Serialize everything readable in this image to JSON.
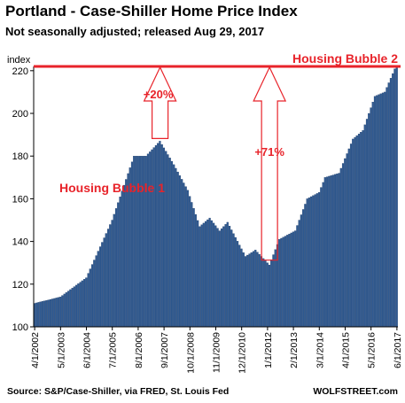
{
  "header": {
    "title": "Portland - Case-Shiller Home Price Index",
    "subtitle": "Not seasonally adjusted; released  Aug 29, 2017"
  },
  "footer": {
    "source": "Source: S&P/Case-Shiller, via FRED,  St. Louis Fed",
    "brand": "WOLFSTREET.com"
  },
  "colors": {
    "bar": "#2f5a92",
    "bar_edge": "#1b3a66",
    "annotation": "#e8232a"
  },
  "chart_data": {
    "type": "bar",
    "title": "Portland - Case-Shiller Home Price Index",
    "ylabel": "index",
    "xlabel": "",
    "ylim": [
      100,
      222
    ],
    "yticks": [
      100,
      120,
      140,
      160,
      180,
      200,
      220
    ],
    "grid": false,
    "legend": "none",
    "x_tick_labels": [
      "4/1/2002",
      "5/1/2003",
      "6/1/2004",
      "7/1/2005",
      "8/1/2006",
      "9/1/2007",
      "10/1/2008",
      "11/1/2009",
      "12/1/2010",
      "1/1/2012",
      "2/1/2013",
      "3/1/2014",
      "4/1/2015",
      "5/1/2016",
      "6/1/2017"
    ],
    "period": {
      "start": "2002-04",
      "end": "2017-06",
      "frequency": "monthly"
    },
    "keypoints": [
      {
        "date": "2002-04",
        "value": 111
      },
      {
        "date": "2003-05",
        "value": 114
      },
      {
        "date": "2004-06",
        "value": 123
      },
      {
        "date": "2005-07",
        "value": 150
      },
      {
        "date": "2006-06",
        "value": 180
      },
      {
        "date": "2006-12",
        "value": 180
      },
      {
        "date": "2007-07",
        "value": 187
      },
      {
        "date": "2008-02",
        "value": 176
      },
      {
        "date": "2008-09",
        "value": 164
      },
      {
        "date": "2009-03",
        "value": 147
      },
      {
        "date": "2009-08",
        "value": 151
      },
      {
        "date": "2010-01",
        "value": 145
      },
      {
        "date": "2010-05",
        "value": 149
      },
      {
        "date": "2011-02",
        "value": 133
      },
      {
        "date": "2011-07",
        "value": 136
      },
      {
        "date": "2012-02",
        "value": 129
      },
      {
        "date": "2012-07",
        "value": 141
      },
      {
        "date": "2013-03",
        "value": 145
      },
      {
        "date": "2013-09",
        "value": 160
      },
      {
        "date": "2014-03",
        "value": 163
      },
      {
        "date": "2014-06",
        "value": 170
      },
      {
        "date": "2015-01",
        "value": 172
      },
      {
        "date": "2015-08",
        "value": 188
      },
      {
        "date": "2016-01",
        "value": 192
      },
      {
        "date": "2016-07",
        "value": 208
      },
      {
        "date": "2016-12",
        "value": 210
      },
      {
        "date": "2017-06",
        "value": 223
      }
    ],
    "reference_line": {
      "value": 222,
      "label": "Housing Bubble 2"
    },
    "annotations": [
      {
        "text": "Housing Bubble 1"
      },
      {
        "text": "+20%",
        "from_date": "2007-07",
        "from_value": 187,
        "to_value": 222
      },
      {
        "text": "+71%",
        "from_date": "2012-02",
        "from_value": 130,
        "to_value": 222
      }
    ]
  }
}
